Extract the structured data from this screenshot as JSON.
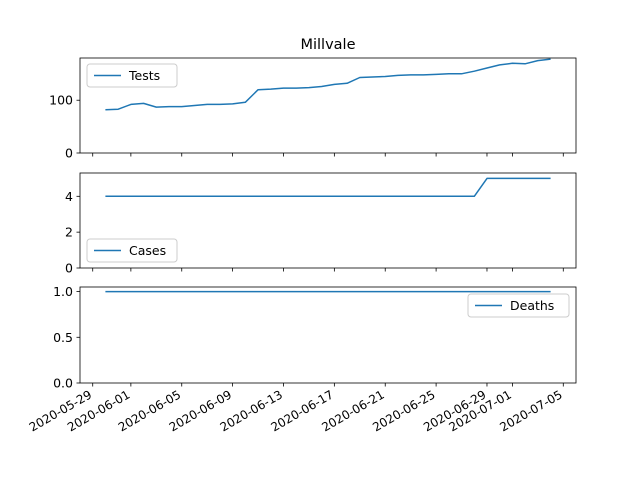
{
  "chart_data": {
    "type": "line",
    "title": "Millvale",
    "line_color": "#1f77b4",
    "grid": false,
    "shared_x": {
      "type": "date",
      "range": [
        "2020-05-28",
        "2020-07-06"
      ],
      "tick_labels": [
        "2020-05-29",
        "2020-06-01",
        "2020-06-05",
        "2020-06-09",
        "2020-06-13",
        "2020-06-17",
        "2020-06-21",
        "2020-06-25",
        "2020-06-29",
        "2020-07-01",
        "2020-07-05"
      ]
    },
    "panels": [
      {
        "series_name": "Tests",
        "legend_position": "upper-left",
        "ylim": [
          0,
          180
        ],
        "yticks": [
          0,
          100
        ],
        "x": [
          "2020-05-30",
          "2020-05-31",
          "2020-06-01",
          "2020-06-02",
          "2020-06-03",
          "2020-06-04",
          "2020-06-05",
          "2020-06-06",
          "2020-06-07",
          "2020-06-08",
          "2020-06-09",
          "2020-06-10",
          "2020-06-11",
          "2020-06-12",
          "2020-06-13",
          "2020-06-14",
          "2020-06-15",
          "2020-06-16",
          "2020-06-17",
          "2020-06-18",
          "2020-06-19",
          "2020-06-20",
          "2020-06-21",
          "2020-06-22",
          "2020-06-23",
          "2020-06-24",
          "2020-06-25",
          "2020-06-26",
          "2020-06-27",
          "2020-06-28",
          "2020-06-29",
          "2020-06-30",
          "2020-07-01",
          "2020-07-02",
          "2020-07-03",
          "2020-07-04"
        ],
        "values": [
          82,
          83,
          92,
          94,
          87,
          88,
          88,
          90,
          92,
          92,
          93,
          96,
          120,
          121,
          123,
          123,
          124,
          126,
          130,
          132,
          143,
          144,
          145,
          147,
          148,
          148,
          149,
          150,
          150,
          155,
          161,
          167,
          170,
          169,
          175,
          178
        ]
      },
      {
        "series_name": "Cases",
        "legend_position": "lower-left",
        "ylim": [
          0,
          5.3
        ],
        "yticks": [
          0,
          2,
          4
        ],
        "x": [
          "2020-05-30",
          "2020-06-28",
          "2020-06-29",
          "2020-07-04"
        ],
        "values": [
          4,
          4,
          5,
          5
        ]
      },
      {
        "series_name": "Deaths",
        "legend_position": "upper-right",
        "ylim": [
          0,
          1.05
        ],
        "yticks": [
          0.0,
          0.5,
          1.0
        ],
        "x": [
          "2020-05-30",
          "2020-07-04"
        ],
        "values": [
          1,
          1
        ]
      }
    ]
  }
}
